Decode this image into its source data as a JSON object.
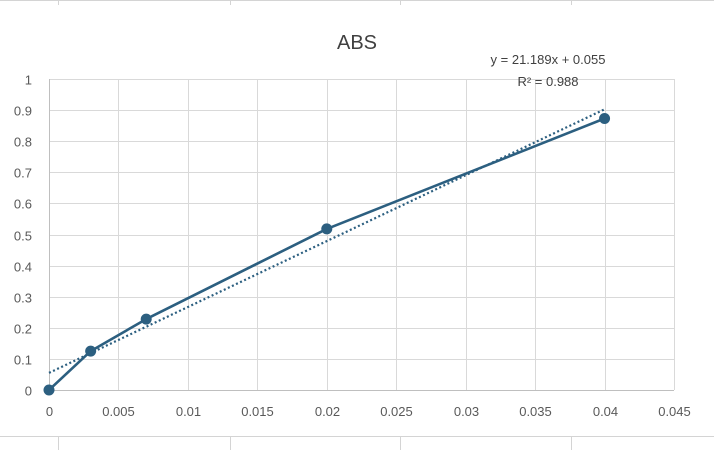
{
  "chart_data": {
    "type": "scatter",
    "title": "ABS",
    "xlabel": "",
    "ylabel": "",
    "xlim": [
      0,
      0.045
    ],
    "ylim": [
      0,
      1
    ],
    "x_ticks": [
      "0",
      "0.005",
      "0.01",
      "0.015",
      "0.02",
      "0.025",
      "0.03",
      "0.035",
      "0.04",
      "0.045"
    ],
    "y_ticks": [
      "0",
      "0.1",
      "0.2",
      "0.3",
      "0.4",
      "0.5",
      "0.6",
      "0.7",
      "0.8",
      "0.9",
      "1"
    ],
    "grid": true,
    "series": [
      {
        "x": [
          0,
          0.003,
          0.007,
          0.02,
          0.04
        ],
        "y": [
          0,
          0.125,
          0.228,
          0.518,
          0.873
        ],
        "color": "#2c5f80",
        "marker": "circle",
        "line": "solid"
      }
    ],
    "trendline": {
      "type": "linear",
      "slope": 21.189,
      "intercept": 0.055,
      "x_range": [
        0,
        0.04
      ],
      "style": "dotted",
      "color": "#2c5f80",
      "equation_label": "y = 21.189x + 0.055",
      "r2_label": "R² = 0.988"
    }
  }
}
